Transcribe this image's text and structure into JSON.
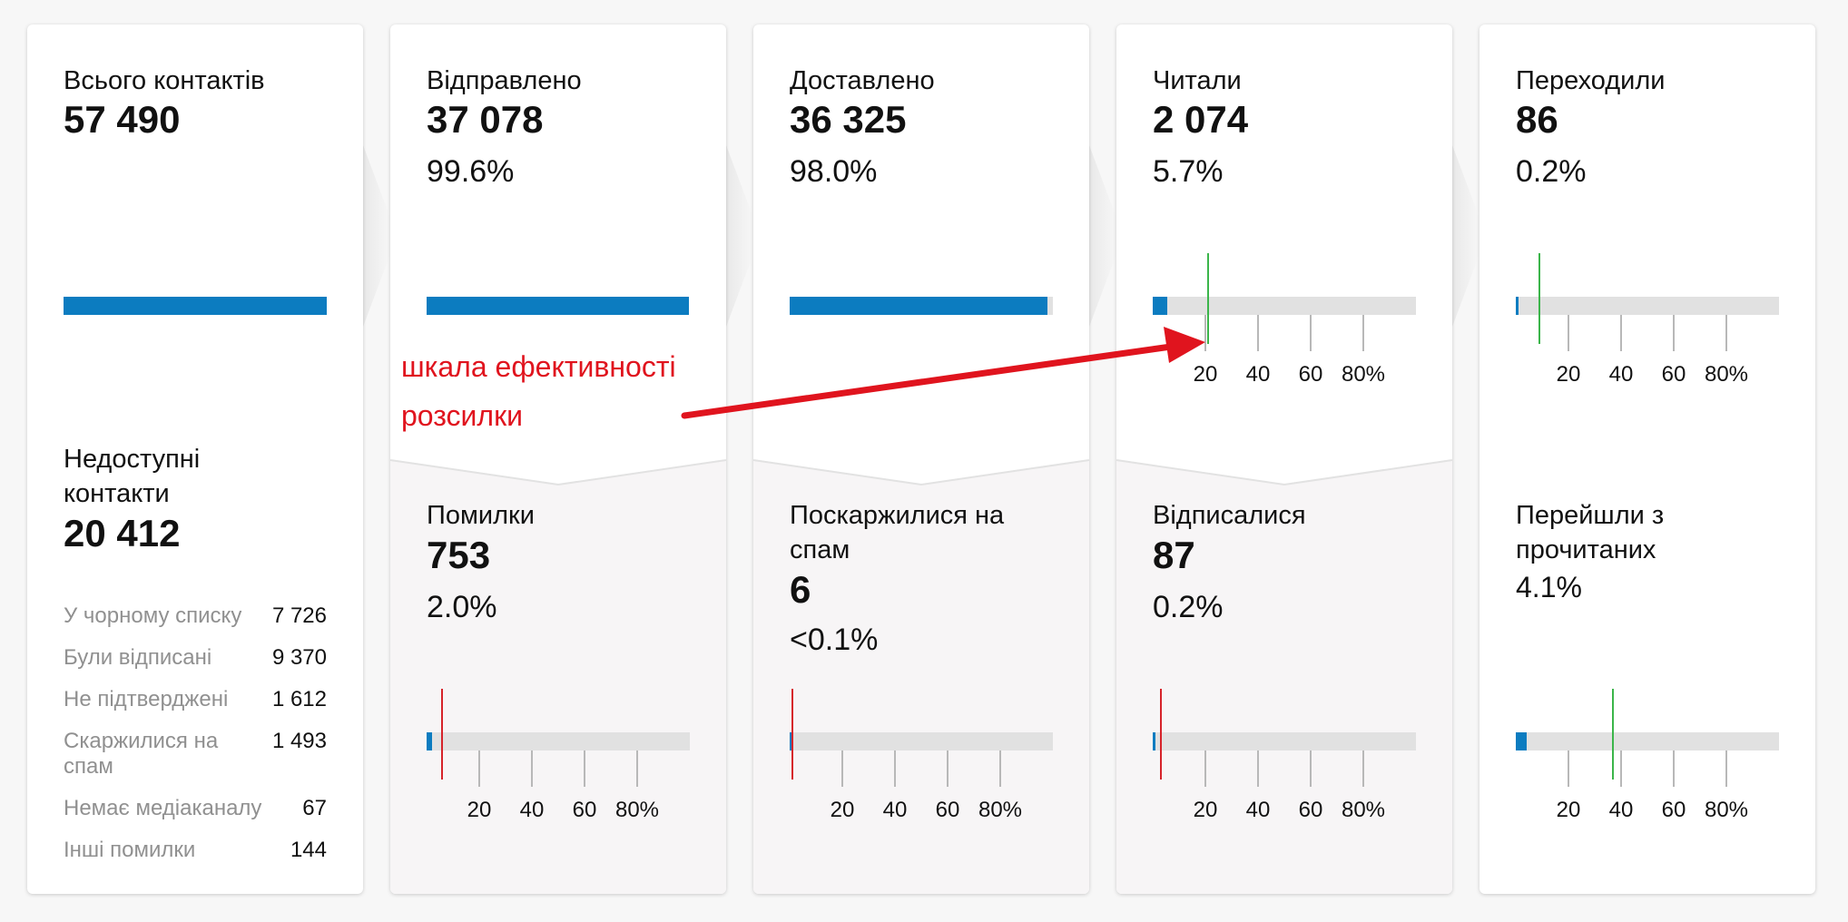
{
  "colors": {
    "accent": "#0c7cc0",
    "track": "#e1e1e1",
    "good_marker": "#3bb54a",
    "bad_marker": "#d6232a",
    "annotation": "#e0141e"
  },
  "ticks": [
    "20",
    "40",
    "60",
    "80%"
  ],
  "annotation": {
    "line1": "шкала ефективності",
    "line2": "розсилки"
  },
  "cards": {
    "total": {
      "label": "Всього контактів",
      "value": "57 490",
      "bar_fraction": 1.0,
      "unavailable": {
        "label": "Недоступні контакти",
        "value": "20 412",
        "rows": [
          {
            "name": "У чорному списку",
            "value": "7 726"
          },
          {
            "name": "Були відписані",
            "value": "9 370"
          },
          {
            "name": "Не підтверджені",
            "value": "1 612"
          },
          {
            "name": "Скаржилися на спам",
            "value": "1 493"
          },
          {
            "name": "Немає медіаканалу",
            "value": "67"
          },
          {
            "name": "Інші помилки",
            "value": "144"
          }
        ]
      }
    },
    "sent": {
      "label": "Відправлено",
      "value": "37 078",
      "percent": "99.6%",
      "bar_fraction": 0.996,
      "lower": {
        "label": "Помилки",
        "value": "753",
        "percent": "2.0%",
        "fill_percent": 2.0,
        "marker_percent": 5
      }
    },
    "delivered": {
      "label": "Доставлено",
      "value": "36 325",
      "percent": "98.0%",
      "bar_fraction": 0.98,
      "lower": {
        "label": "Поскаржилися на спам",
        "value": "6",
        "percent": "<0.1%",
        "fill_percent": 0.1,
        "marker_percent": 0
      }
    },
    "read": {
      "label": "Читали",
      "value": "2 074",
      "percent": "5.7%",
      "fill_percent": 5.7,
      "marker_percent": 20,
      "lower": {
        "label": "Відписалися",
        "value": "87",
        "percent": "0.2%",
        "fill_percent": 0.2,
        "marker_percent": 2
      }
    },
    "clicked": {
      "label": "Переходили",
      "value": "86",
      "percent": "0.2%",
      "fill_percent": 0.2,
      "marker_percent": 8,
      "lower": {
        "label": "Перейшли з прочитаних",
        "percent": "4.1%",
        "fill_percent": 4.1,
        "marker_percent": 36
      }
    }
  }
}
